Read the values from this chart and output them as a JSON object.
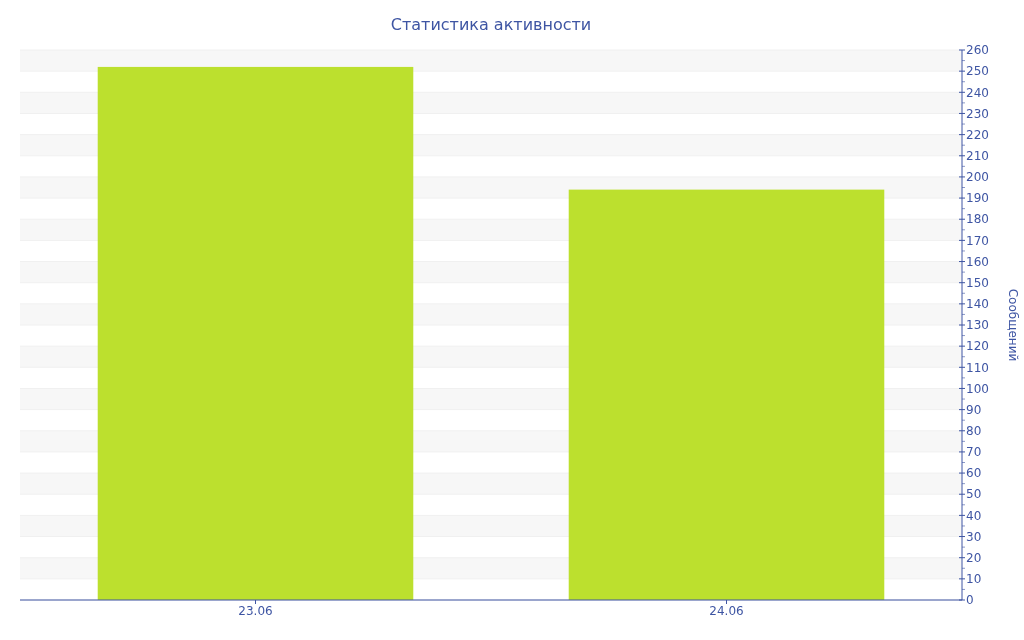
{
  "chart_data": {
    "type": "bar",
    "title": "Статистика активности",
    "ylabel": "Сообщений",
    "categories": [
      "23.06",
      "24.06"
    ],
    "values": [
      252,
      194
    ],
    "color": "#bce02e",
    "ylim": [
      0,
      260
    ],
    "yticks": [
      0,
      10,
      20,
      30,
      40,
      50,
      60,
      70,
      80,
      90,
      100,
      110,
      120,
      130,
      140,
      150,
      160,
      170,
      180,
      190,
      200,
      210,
      220,
      230,
      240,
      250,
      260
    ],
    "grid": "y"
  }
}
